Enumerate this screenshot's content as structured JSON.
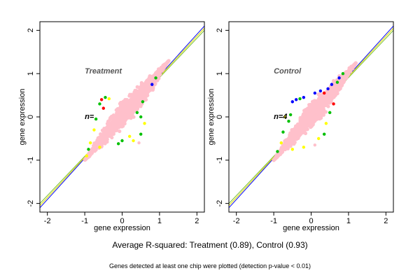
{
  "chart_data": [
    {
      "type": "scatter",
      "panel": "left",
      "title": "Treatment",
      "n_label": "n=",
      "xlabel": "gene expression",
      "ylabel": "gene expression",
      "xlim": [
        -2.2,
        2.2
      ],
      "ylim": [
        -2.2,
        2.2
      ],
      "xticks": [
        -2,
        -1,
        0,
        1,
        2
      ],
      "yticks": [
        -2,
        -1,
        0,
        1,
        2
      ],
      "grid": false,
      "reference_lines": [
        {
          "name": "blue",
          "color": "#0000ff",
          "from": [
            -2.2,
            -2.1
          ],
          "to": [
            2.2,
            2.1
          ]
        },
        {
          "name": "green",
          "color": "#7cbf3a",
          "from": [
            -2.2,
            -2.0
          ],
          "to": [
            2.2,
            2.0
          ]
        },
        {
          "name": "yellow",
          "color": "#e0e000",
          "from": [
            -2.2,
            -2.05
          ],
          "to": [
            2.2,
            2.05
          ]
        }
      ],
      "cloud": {
        "color": "#ffc0cb",
        "center": [
          0.05,
          0.05
        ],
        "lower_left": [
          -1.0,
          -1.0
        ],
        "upper_right": [
          1.25,
          1.3
        ],
        "half_width": 0.28
      },
      "outlier_points": [
        {
          "x": -0.55,
          "y": 0.4,
          "color": "#ff0000"
        },
        {
          "x": -0.45,
          "y": 0.45,
          "color": "#00c000"
        },
        {
          "x": -0.35,
          "y": 0.42,
          "color": "#ffff00"
        },
        {
          "x": -0.6,
          "y": 0.3,
          "color": "#00c000"
        },
        {
          "x": -0.5,
          "y": 0.2,
          "color": "#ff0000"
        },
        {
          "x": -0.7,
          "y": -0.05,
          "color": "#00c000"
        },
        {
          "x": -0.75,
          "y": -0.3,
          "color": "#ffff00"
        },
        {
          "x": -0.85,
          "y": -0.6,
          "color": "#ffff00"
        },
        {
          "x": -0.9,
          "y": -0.75,
          "color": "#00c000"
        },
        {
          "x": -0.95,
          "y": -0.9,
          "color": "#ffff00"
        },
        {
          "x": -0.6,
          "y": -0.7,
          "color": "#ffff00"
        },
        {
          "x": 0.4,
          "y": 0.1,
          "color": "#00c000"
        },
        {
          "x": 0.5,
          "y": 0.0,
          "color": "#00c000"
        },
        {
          "x": 0.55,
          "y": 0.35,
          "color": "#00c000"
        },
        {
          "x": 0.6,
          "y": -0.15,
          "color": "#ffff00"
        },
        {
          "x": 0.5,
          "y": -0.4,
          "color": "#00c000"
        },
        {
          "x": 0.3,
          "y": -0.55,
          "color": "#ffff00"
        },
        {
          "x": 0.45,
          "y": -0.6,
          "color": "#ffc0cb"
        },
        {
          "x": 0.8,
          "y": 0.75,
          "color": "#0000ff"
        },
        {
          "x": 0.9,
          "y": 0.9,
          "color": "#00c000"
        },
        {
          "x": -0.1,
          "y": -0.62,
          "color": "#00c000"
        },
        {
          "x": -0.2,
          "y": 0.55,
          "color": "#ffffff"
        },
        {
          "x": 0.0,
          "y": -0.55,
          "color": "#00c000"
        },
        {
          "x": 0.2,
          "y": -0.45,
          "color": "#ffff00"
        }
      ]
    },
    {
      "type": "scatter",
      "panel": "right",
      "title": "Control",
      "n_label": "n=4",
      "xlabel": "gene expression",
      "ylabel": "gene expression",
      "xlim": [
        -2.2,
        2.2
      ],
      "ylim": [
        -2.2,
        2.2
      ],
      "xticks": [
        -2,
        -1,
        0,
        1,
        2
      ],
      "yticks": [
        -2,
        -1,
        0,
        1,
        2
      ],
      "grid": false,
      "reference_lines": [
        {
          "name": "blue",
          "color": "#0000ff",
          "from": [
            -2.2,
            -2.1
          ],
          "to": [
            2.2,
            2.1
          ]
        },
        {
          "name": "green",
          "color": "#7cbf3a",
          "from": [
            -2.2,
            -2.0
          ],
          "to": [
            2.2,
            2.0
          ]
        },
        {
          "name": "yellow",
          "color": "#e0e000",
          "from": [
            -2.2,
            -2.05
          ],
          "to": [
            2.2,
            2.05
          ]
        }
      ],
      "cloud": {
        "color": "#ffc0cb",
        "center": [
          0.05,
          0.05
        ],
        "lower_left": [
          -1.0,
          -1.0
        ],
        "upper_right": [
          1.2,
          1.25
        ],
        "half_width": 0.26
      },
      "outlier_points": [
        {
          "x": -0.5,
          "y": 0.35,
          "color": "#0000ff"
        },
        {
          "x": -0.4,
          "y": 0.4,
          "color": "#0000ff"
        },
        {
          "x": -0.3,
          "y": 0.42,
          "color": "#00c000"
        },
        {
          "x": -0.2,
          "y": 0.45,
          "color": "#0000ff"
        },
        {
          "x": 0.1,
          "y": 0.55,
          "color": "#0000ff"
        },
        {
          "x": 0.25,
          "y": 0.6,
          "color": "#0000ff"
        },
        {
          "x": 0.35,
          "y": 0.55,
          "color": "#ff0000"
        },
        {
          "x": 0.45,
          "y": 0.65,
          "color": "#0000ff"
        },
        {
          "x": 0.55,
          "y": 0.75,
          "color": "#0000ff"
        },
        {
          "x": 0.7,
          "y": 0.8,
          "color": "#00c000"
        },
        {
          "x": 0.75,
          "y": 0.9,
          "color": "#0000ff"
        },
        {
          "x": 0.85,
          "y": 1.0,
          "color": "#00c000"
        },
        {
          "x": 0.6,
          "y": 0.3,
          "color": "#ff0000"
        },
        {
          "x": 0.5,
          "y": 0.1,
          "color": "#00c000"
        },
        {
          "x": 0.4,
          "y": -0.15,
          "color": "#ffff00"
        },
        {
          "x": 0.35,
          "y": -0.4,
          "color": "#00c000"
        },
        {
          "x": 0.2,
          "y": -0.5,
          "color": "#ffff00"
        },
        {
          "x": 0.1,
          "y": -0.65,
          "color": "#ffc0cb"
        },
        {
          "x": -0.55,
          "y": 0.05,
          "color": "#00c000"
        },
        {
          "x": -0.6,
          "y": -0.1,
          "color": "#00c000"
        },
        {
          "x": -0.75,
          "y": -0.35,
          "color": "#00c000"
        },
        {
          "x": -0.8,
          "y": -0.6,
          "color": "#ffff00"
        },
        {
          "x": -0.9,
          "y": -0.8,
          "color": "#00c000"
        },
        {
          "x": -0.5,
          "y": -0.75,
          "color": "#ffff00"
        },
        {
          "x": -0.2,
          "y": -0.7,
          "color": "#ffff00"
        },
        {
          "x": -0.7,
          "y": 0.0,
          "color": "#ffff00"
        }
      ]
    }
  ],
  "captions": {
    "main": "Average R-squared: Treatment (0.89), Control (0.93)",
    "sub": "Genes detected at least one chip were plotted (detection p-value < 0.01)"
  }
}
